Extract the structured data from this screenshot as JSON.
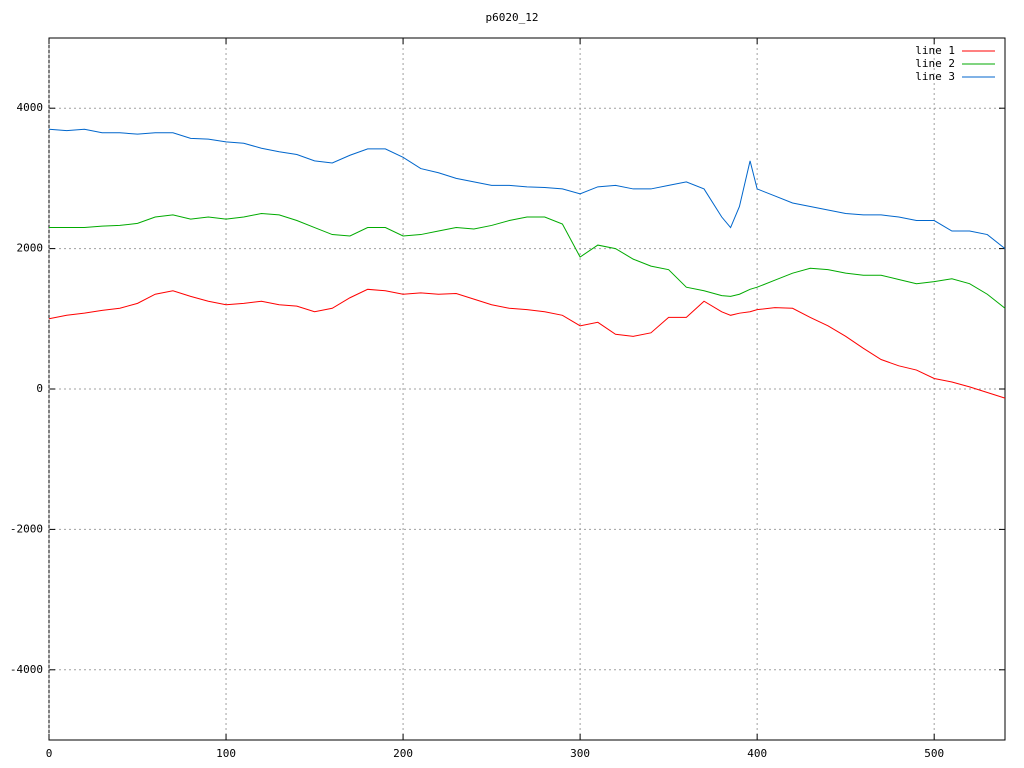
{
  "chart_data": {
    "type": "line",
    "title": "p6020_12",
    "x": [
      0,
      10,
      20,
      30,
      40,
      50,
      60,
      70,
      80,
      90,
      100,
      110,
      120,
      130,
      140,
      150,
      160,
      170,
      180,
      190,
      200,
      210,
      220,
      230,
      240,
      250,
      260,
      270,
      280,
      290,
      300,
      310,
      320,
      330,
      340,
      350,
      360,
      370,
      380,
      385,
      390,
      396,
      400,
      410,
      420,
      430,
      440,
      450,
      460,
      470,
      480,
      490,
      500,
      510,
      520,
      530,
      540
    ],
    "series": [
      {
        "name": "line 1",
        "color": "#ff0000",
        "values": [
          1000,
          1050,
          1080,
          1120,
          1150,
          1220,
          1350,
          1400,
          1320,
          1250,
          1200,
          1220,
          1250,
          1200,
          1180,
          1100,
          1150,
          1300,
          1420,
          1400,
          1350,
          1370,
          1350,
          1360,
          1280,
          1200,
          1150,
          1130,
          1100,
          1050,
          900,
          950,
          780,
          750,
          800,
          1020,
          1020,
          1250,
          1100,
          1050,
          1080,
          1100,
          1130,
          1160,
          1150,
          1020,
          900,
          750,
          580,
          420,
          330,
          270,
          150,
          100,
          30,
          -50,
          -130
        ]
      },
      {
        "name": "line 2",
        "color": "#00aa00",
        "values": [
          2300,
          2300,
          2300,
          2320,
          2330,
          2360,
          2450,
          2480,
          2420,
          2450,
          2420,
          2450,
          2500,
          2480,
          2400,
          2300,
          2200,
          2180,
          2300,
          2300,
          2180,
          2200,
          2250,
          2300,
          2280,
          2330,
          2400,
          2450,
          2450,
          2350,
          1880,
          2050,
          2000,
          1850,
          1750,
          1700,
          1450,
          1400,
          1330,
          1320,
          1350,
          1420,
          1450,
          1550,
          1650,
          1720,
          1700,
          1650,
          1620,
          1620,
          1560,
          1500,
          1530,
          1570,
          1500,
          1350,
          1150
        ]
      },
      {
        "name": "line 3",
        "color": "#0066cc",
        "values": [
          3700,
          3680,
          3700,
          3650,
          3650,
          3630,
          3650,
          3650,
          3570,
          3560,
          3520,
          3500,
          3430,
          3380,
          3340,
          3250,
          3220,
          3330,
          3420,
          3420,
          3300,
          3140,
          3080,
          3000,
          2950,
          2900,
          2900,
          2880,
          2870,
          2850,
          2780,
          2880,
          2900,
          2850,
          2850,
          2900,
          2950,
          2850,
          2450,
          2300,
          2600,
          3250,
          2850,
          2750,
          2650,
          2600,
          2550,
          2500,
          2480,
          2480,
          2450,
          2400,
          2400,
          2250,
          2250,
          2200,
          2000
        ]
      }
    ],
    "xlim": [
      0,
      540
    ],
    "xticks": [
      0,
      100,
      200,
      300,
      400,
      500
    ],
    "ylim": [
      -5000,
      5000
    ],
    "yticks": [
      -4000,
      -2000,
      0,
      2000,
      4000
    ],
    "grid": true,
    "legend": "top-right"
  }
}
